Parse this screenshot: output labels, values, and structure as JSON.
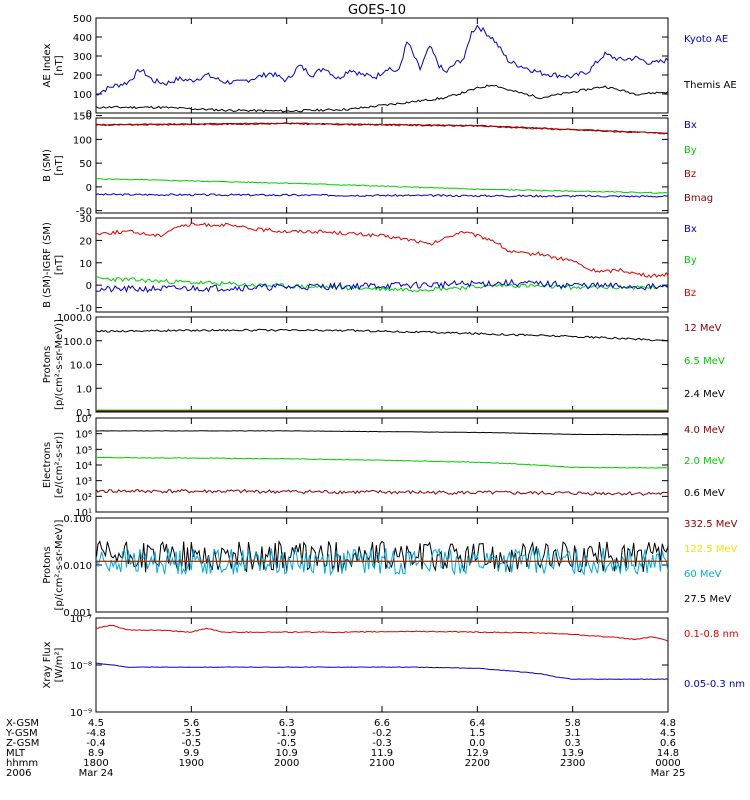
{
  "title": "GOES-10",
  "colors": {
    "black": "#000000",
    "blue": "#0000cc",
    "green": "#00cc00",
    "red": "#aa0000",
    "darkred": "#880000",
    "yellow": "#ffdd00",
    "cyan": "#00a8e0",
    "brightred": "#dd0000"
  },
  "chart_data": [
    {
      "type": "line",
      "panel": "ae",
      "ylabel": [
        "AE Index",
        "[nT]"
      ],
      "yscale": "linear",
      "ylim": [
        0,
        500
      ],
      "ticks": [
        {
          "v": 0,
          "label": "0"
        },
        {
          "v": 100,
          "label": "100"
        },
        {
          "v": 200,
          "label": "200"
        },
        {
          "v": 300,
          "label": "300"
        },
        {
          "v": 400,
          "label": "400"
        },
        {
          "v": 500,
          "label": "500"
        }
      ],
      "series": [
        {
          "name": "Kyoto AE",
          "color": "blue",
          "x": [
            0,
            5,
            10,
            14,
            18,
            22,
            26,
            30,
            35,
            40,
            45,
            50,
            55,
            60,
            64,
            68,
            72,
            76,
            80,
            84,
            88,
            92,
            95,
            98,
            100,
            102,
            105,
            108,
            110,
            113,
            116,
            118,
            120,
            125,
            130,
            135,
            140,
            145,
            150,
            155,
            160,
            165,
            170,
            175,
            180
          ],
          "y": [
            100,
            140,
            160,
            230,
            170,
            155,
            180,
            170,
            200,
            165,
            160,
            185,
            210,
            170,
            250,
            200,
            240,
            180,
            230,
            200,
            190,
            240,
            210,
            380,
            300,
            230,
            350,
            250,
            210,
            260,
            290,
            420,
            460,
            390,
            270,
            240,
            210,
            200,
            190,
            220,
            310,
            280,
            290,
            260,
            280
          ],
          "noise": 14,
          "seed": 7
        },
        {
          "name": "Themis AE",
          "color": "black",
          "x": [
            0,
            20,
            40,
            60,
            80,
            100,
            110,
            120,
            125,
            130,
            135,
            140,
            150,
            160,
            170,
            180
          ],
          "y": [
            30,
            30,
            15,
            10,
            20,
            60,
            80,
            130,
            150,
            120,
            100,
            80,
            110,
            140,
            100,
            110
          ],
          "noise": 6,
          "seed": 11
        }
      ]
    },
    {
      "type": "line",
      "panel": "b",
      "ylabel": [
        "B (SM)",
        "[nT]"
      ],
      "yscale": "linear",
      "ylim": [
        -55,
        145
      ],
      "ticks": [
        {
          "v": -50,
          "label": "-50"
        },
        {
          "v": 0,
          "label": "0"
        },
        {
          "v": 50,
          "label": "50"
        },
        {
          "v": 100,
          "label": "100"
        },
        {
          "v": 150,
          "label": "150"
        }
      ],
      "series": [
        {
          "name": "Bx",
          "color": "blue",
          "x": [
            0,
            180
          ],
          "y": [
            -16,
            -20
          ],
          "noise": 2,
          "seed": 3
        },
        {
          "name": "By",
          "color": "green",
          "x": [
            0,
            60,
            120,
            180
          ],
          "y": [
            17,
            8,
            -5,
            -13
          ],
          "noise": 1,
          "seed": 5
        },
        {
          "name": "Bz",
          "color": "red",
          "x": [
            0,
            60,
            120,
            180
          ],
          "y": [
            130,
            133,
            128,
            112
          ],
          "noise": 1.5,
          "seed": 9
        },
        {
          "name": "Bmag",
          "color": "darkred",
          "x": [
            0,
            60,
            120,
            180
          ],
          "y": [
            131,
            134,
            129,
            113
          ],
          "noise": 1,
          "seed": 13
        }
      ]
    },
    {
      "type": "line",
      "panel": "dbigrf",
      "ylabel": [
        "B (SM)-IGRF (SM)",
        "[nT]"
      ],
      "yscale": "linear",
      "ylim": [
        -12,
        30
      ],
      "ticks": [
        {
          "v": -10,
          "label": "-10"
        },
        {
          "v": 0,
          "label": "0"
        },
        {
          "v": 10,
          "label": "10"
        },
        {
          "v": 20,
          "label": "20"
        },
        {
          "v": 30,
          "label": "30"
        }
      ],
      "series": [
        {
          "name": "Bx",
          "color": "blue",
          "x": [
            0,
            50,
            100,
            130,
            150,
            180
          ],
          "y": [
            -2,
            -1,
            0,
            1,
            0,
            -1
          ],
          "noise": 1.5,
          "seed": 21
        },
        {
          "name": "By",
          "color": "green",
          "x": [
            0,
            50,
            100,
            130,
            150,
            180
          ],
          "y": [
            3,
            0,
            -2,
            0,
            -1,
            -1
          ],
          "noise": 1,
          "seed": 23
        },
        {
          "name": "Bz",
          "color": "brightred",
          "x": [
            0,
            10,
            20,
            25,
            30,
            40,
            50,
            60,
            70,
            80,
            90,
            100,
            105,
            110,
            115,
            120,
            125,
            130,
            135,
            140,
            145,
            150,
            155,
            160,
            165,
            170,
            175,
            180
          ],
          "y": [
            23,
            24,
            22,
            26,
            27,
            27,
            25,
            24,
            24,
            23,
            22,
            20,
            18,
            21,
            24,
            22,
            20,
            15,
            14,
            14,
            12,
            11,
            7,
            6,
            7,
            5,
            4,
            5
          ],
          "noise": 0.8,
          "seed": 25
        }
      ]
    },
    {
      "type": "line",
      "panel": "protons_hi",
      "ylabel": [
        "Protons",
        "[p/(cm²-s-sr-MeV)]"
      ],
      "yscale": "log",
      "ylim": [
        0.1,
        1000
      ],
      "ticks": [
        {
          "v": 0.1,
          "label": "0.1"
        },
        {
          "v": 1,
          "label": "1.0"
        },
        {
          "v": 10,
          "label": "10.0"
        },
        {
          "v": 100,
          "label": "100.0"
        },
        {
          "v": 1000,
          "label": "1000.0"
        }
      ],
      "series": [
        {
          "name": "12 MeV",
          "color": "darkred",
          "x": [
            0,
            180
          ],
          "y": [
            0.11,
            0.11
          ],
          "noise": 0,
          "seed": 31
        },
        {
          "name": "6.5 MeV",
          "color": "green",
          "x": [
            0,
            180
          ],
          "y": [
            0.12,
            0.12
          ],
          "noise": 0,
          "seed": 33
        },
        {
          "name": "2.4 MeV",
          "color": "black",
          "x": [
            0,
            40,
            80,
            120,
            150,
            180
          ],
          "y": [
            250,
            280,
            270,
            200,
            150,
            100
          ],
          "noise": 0.04,
          "seed": 35
        }
      ]
    },
    {
      "type": "line",
      "panel": "electrons",
      "ylabel": [
        "Electrons",
        "[e/(cm²-s-sr)]"
      ],
      "yscale": "log",
      "ylim": [
        10,
        10000000
      ],
      "ticks": [
        {
          "v": 10,
          "label": "10¹"
        },
        {
          "v": 100,
          "label": "10²"
        },
        {
          "v": 1000,
          "label": "10³"
        },
        {
          "v": 10000,
          "label": "10⁴"
        },
        {
          "v": 100000,
          "label": "10⁵"
        },
        {
          "v": 1000000,
          "label": "10⁶"
        },
        {
          "v": 10000000,
          "label": "10⁷"
        }
      ],
      "series": [
        {
          "name": "4.0 MeV",
          "color": "darkred",
          "x": [
            0,
            60,
            120,
            180
          ],
          "y": [
            220,
            200,
            170,
            150
          ],
          "noise": 0.12,
          "seed": 41
        },
        {
          "name": "2.0 MeV",
          "color": "green",
          "x": [
            0,
            60,
            120,
            150,
            180
          ],
          "y": [
            30000,
            25000,
            15000,
            7000,
            6500
          ],
          "noise": 0.02,
          "seed": 43
        },
        {
          "name": "0.6 MeV",
          "color": "black",
          "x": [
            0,
            60,
            120,
            150,
            180
          ],
          "y": [
            1500000,
            1500000,
            1200000,
            900000,
            850000
          ],
          "noise": 0.01,
          "seed": 45
        }
      ]
    },
    {
      "type": "line",
      "panel": "protons_lo",
      "ylabel": [
        "Protons",
        "[p/(cm²-s-sr-MeV)]"
      ],
      "yscale": "log",
      "ylim": [
        0.001,
        0.1
      ],
      "ticks": [
        {
          "v": 0.001,
          "label": "0.001"
        },
        {
          "v": 0.01,
          "label": "0.010"
        },
        {
          "v": 0.1,
          "label": "0.100"
        }
      ],
      "series": [
        {
          "name": "332.5 MeV",
          "color": "darkred",
          "x": [
            0,
            180
          ],
          "y": [
            0.012,
            0.012
          ],
          "noise": 0,
          "seed": 51
        },
        {
          "name": "122.5 MeV",
          "color": "yellow",
          "x": [
            0,
            180
          ],
          "y": [
            0.012,
            0.012
          ],
          "noise": 0,
          "seed": 53
        },
        {
          "name": "60 MeV",
          "color": "cyan",
          "x": [
            0,
            180
          ],
          "y": [
            0.012,
            0.012
          ],
          "noise": 0.28,
          "seed": 55
        },
        {
          "name": "27.5 MeV",
          "color": "black",
          "x": [
            0,
            180
          ],
          "y": [
            0.015,
            0.015
          ],
          "noise": 0.33,
          "seed": 57
        }
      ]
    },
    {
      "type": "line",
      "panel": "xray",
      "ylabel": [
        "Xray Flux",
        "[W/m²]"
      ],
      "yscale": "log",
      "ylim": [
        1e-09,
        1e-07
      ],
      "ticks": [
        {
          "v": 1e-09,
          "label": "10⁻⁹"
        },
        {
          "v": 1e-08,
          "label": "10⁻⁸"
        },
        {
          "v": 1e-07,
          "label": "10⁻⁷"
        }
      ],
      "series": [
        {
          "name": "0.1-0.8 nm",
          "color": "brightred",
          "x": [
            0,
            5,
            10,
            20,
            30,
            35,
            40,
            60,
            80,
            100,
            120,
            140,
            150,
            160,
            170,
            175,
            180
          ],
          "y": [
            6e-08,
            7e-08,
            5.5e-08,
            5.5e-08,
            5e-08,
            6e-08,
            5e-08,
            5e-08,
            5e-08,
            5.2e-08,
            5e-08,
            4.8e-08,
            4.5e-08,
            4e-08,
            3.5e-08,
            4e-08,
            3.2e-08
          ],
          "noise": 0.01,
          "seed": 61
        },
        {
          "name": "0.05-0.3 nm",
          "color": "blue",
          "x": [
            0,
            5,
            10,
            60,
            100,
            120,
            130,
            140,
            145,
            150,
            180
          ],
          "y": [
            1.1e-08,
            1e-08,
            9e-09,
            9e-09,
            9e-09,
            8.5e-09,
            7.5e-09,
            6.5e-09,
            5.5e-09,
            5e-09,
            5e-09
          ],
          "noise": 0.005,
          "seed": 63
        }
      ]
    }
  ],
  "footer": {
    "labels": [
      "X-GSM",
      "Y-GSM",
      "Z-GSM",
      "MLT",
      "hhmm",
      "2006"
    ],
    "columns": [
      {
        "values": [
          "4.5",
          "-4.8",
          "-0.4",
          "8.9",
          "1800",
          "Mar 24"
        ]
      },
      {
        "values": [
          "5.6",
          "-3.5",
          "-0.5",
          "9.9",
          "1900",
          ""
        ]
      },
      {
        "values": [
          "6.3",
          "-1.9",
          "-0.5",
          "10.9",
          "2000",
          ""
        ]
      },
      {
        "values": [
          "6.6",
          "-0.2",
          "-0.3",
          "11.9",
          "2100",
          ""
        ]
      },
      {
        "values": [
          "6.4",
          "1.5",
          "0.0",
          "12.9",
          "2200",
          ""
        ]
      },
      {
        "values": [
          "5.8",
          "3.1",
          "0.3",
          "13.9",
          "2300",
          ""
        ]
      },
      {
        "values": [
          "4.8",
          "4.5",
          "0.6",
          "14.8",
          "0000",
          "Mar 25"
        ]
      }
    ]
  }
}
